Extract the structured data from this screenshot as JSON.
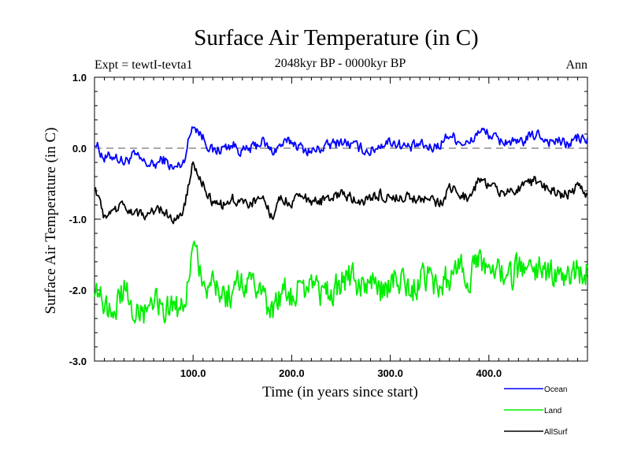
{
  "chart_data": {
    "type": "line",
    "title": "Surface Air Temperature (in C)",
    "subtitle": "2048kyr BP - 0000kyr BP",
    "expt_label": "Expt = tewtI-tevta1",
    "season_label": "Ann",
    "xlabel": "Time (in years since start)",
    "ylabel": "Surface Air Temperature (in C)",
    "xlim": [
      0,
      500
    ],
    "ylim": [
      -3.0,
      1.0
    ],
    "xticks": [
      100,
      200,
      300,
      400
    ],
    "xtick_labels": [
      "100.0",
      "200.0",
      "300.0",
      "400.0"
    ],
    "yticks": [
      1.0,
      0.0,
      -1.0,
      -2.0,
      -3.0
    ],
    "ytick_labels": [
      "1.0",
      "0.0",
      "-1.0",
      "-2.0",
      "-3.0"
    ],
    "zero_line": true,
    "series": [
      {
        "name": "Ocean",
        "color": "#0000ff",
        "x": [
          0,
          10,
          20,
          30,
          40,
          50,
          60,
          70,
          80,
          90,
          100,
          110,
          120,
          130,
          140,
          150,
          160,
          170,
          180,
          190,
          200,
          210,
          220,
          230,
          240,
          250,
          260,
          270,
          280,
          290,
          300,
          310,
          320,
          330,
          340,
          350,
          360,
          370,
          380,
          390,
          400,
          410,
          420,
          430,
          440,
          450,
          460,
          470,
          480,
          490,
          500
        ],
        "values": [
          0.1,
          -0.15,
          -0.1,
          -0.2,
          -0.1,
          -0.2,
          -0.25,
          -0.15,
          -0.3,
          -0.2,
          0.35,
          0.15,
          -0.05,
          0.0,
          0.05,
          -0.05,
          0.0,
          0.1,
          -0.05,
          0.05,
          0.1,
          0.0,
          -0.05,
          0.0,
          0.05,
          0.1,
          0.05,
          0.0,
          -0.05,
          0.05,
          0.1,
          0.05,
          0.0,
          0.05,
          0.0,
          0.05,
          0.2,
          0.1,
          0.05,
          0.25,
          0.2,
          0.1,
          0.1,
          0.05,
          0.15,
          0.2,
          0.1,
          0.1,
          0.05,
          0.15,
          0.1
        ]
      },
      {
        "name": "Land",
        "color": "#00ee00",
        "x": [
          0,
          10,
          20,
          30,
          40,
          50,
          60,
          70,
          80,
          90,
          100,
          110,
          120,
          130,
          140,
          150,
          160,
          170,
          180,
          190,
          200,
          210,
          220,
          230,
          240,
          250,
          260,
          270,
          280,
          290,
          300,
          310,
          320,
          330,
          340,
          350,
          360,
          370,
          380,
          390,
          400,
          410,
          420,
          430,
          440,
          450,
          460,
          470,
          480,
          490,
          500
        ],
        "values": [
          -1.9,
          -2.3,
          -2.2,
          -2.0,
          -2.2,
          -2.3,
          -2.1,
          -2.2,
          -2.3,
          -2.2,
          -1.5,
          -1.8,
          -2.0,
          -2.1,
          -2.0,
          -1.9,
          -2.0,
          -2.1,
          -2.3,
          -2.0,
          -2.1,
          -2.0,
          -1.9,
          -2.0,
          -2.0,
          -1.9,
          -1.8,
          -2.0,
          -1.9,
          -2.0,
          -1.9,
          -1.8,
          -2.0,
          -1.9,
          -1.8,
          -2.0,
          -1.8,
          -1.7,
          -1.8,
          -1.6,
          -1.7,
          -1.8,
          -1.9,
          -1.7,
          -1.6,
          -1.7,
          -1.8,
          -1.7,
          -1.8,
          -1.7,
          -1.8
        ]
      },
      {
        "name": "AllSurf",
        "color": "#000000",
        "x": [
          0,
          10,
          20,
          30,
          40,
          50,
          60,
          70,
          80,
          90,
          100,
          110,
          120,
          130,
          140,
          150,
          160,
          170,
          180,
          190,
          200,
          210,
          220,
          230,
          240,
          250,
          260,
          270,
          280,
          290,
          300,
          310,
          320,
          330,
          340,
          350,
          360,
          370,
          380,
          390,
          400,
          410,
          420,
          430,
          440,
          450,
          460,
          470,
          480,
          490,
          500
        ],
        "values": [
          -0.5,
          -1.0,
          -0.9,
          -0.8,
          -0.9,
          -0.95,
          -0.9,
          -0.85,
          -1.0,
          -0.9,
          -0.2,
          -0.5,
          -0.75,
          -0.8,
          -0.7,
          -0.8,
          -0.75,
          -0.7,
          -0.95,
          -0.7,
          -0.75,
          -0.7,
          -0.75,
          -0.75,
          -0.7,
          -0.65,
          -0.7,
          -0.75,
          -0.7,
          -0.65,
          -0.7,
          -0.65,
          -0.7,
          -0.7,
          -0.75,
          -0.8,
          -0.55,
          -0.65,
          -0.7,
          -0.45,
          -0.5,
          -0.6,
          -0.6,
          -0.55,
          -0.5,
          -0.45,
          -0.6,
          -0.65,
          -0.65,
          -0.55,
          -0.65
        ]
      }
    ],
    "legend": {
      "placement": "bottom-right",
      "entries": [
        "Ocean",
        "Land",
        "AllSurf"
      ]
    }
  }
}
